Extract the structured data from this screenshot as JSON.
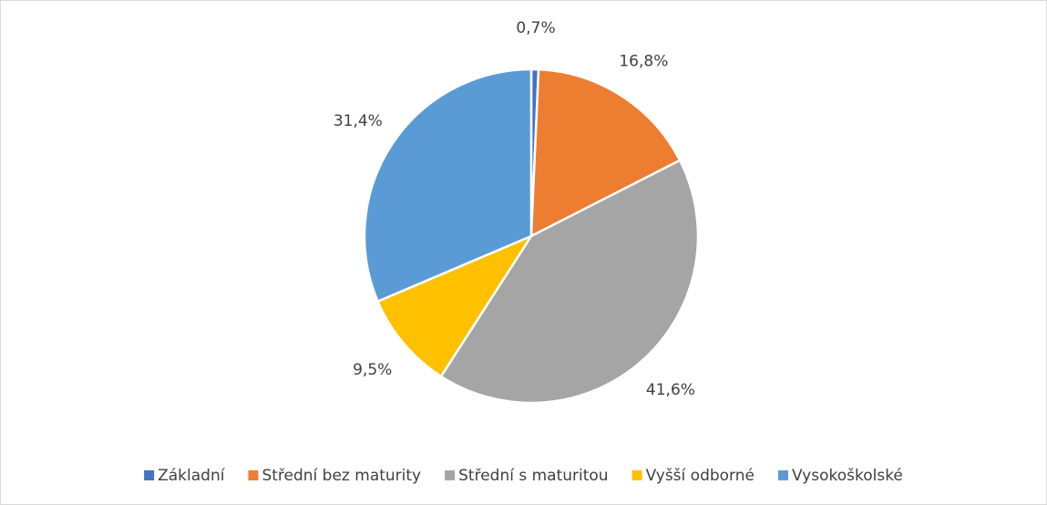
{
  "chart_data": {
    "type": "pie",
    "categories": [
      "Základní",
      "Střední bez maturity",
      "Střední s maturitou",
      "Vyšší odborné",
      "Vysokoškolské"
    ],
    "values": [
      0.7,
      16.8,
      41.6,
      9.5,
      31.4
    ],
    "value_labels": [
      "0,7%",
      "16,8%",
      "41,6%",
      "9,5%",
      "31,4%"
    ],
    "colors": [
      "#4472c4",
      "#ed7d31",
      "#a5a5a5",
      "#ffc000",
      "#5b9bd5"
    ],
    "legend": "bottom"
  }
}
